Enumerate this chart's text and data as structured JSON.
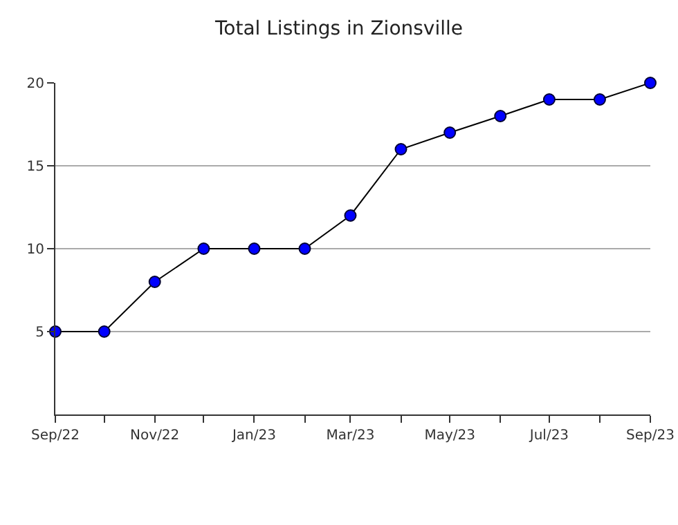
{
  "chart_data": {
    "type": "line",
    "title": "Total Listings in Zionsville",
    "x": [
      "2022-09",
      "2022-10",
      "2022-11",
      "2022-12",
      "2023-01",
      "2023-02",
      "2023-03",
      "2023-04",
      "2023-05",
      "2023-06",
      "2023-07",
      "2023-08",
      "2023-09"
    ],
    "series": [
      {
        "color": "#0000ff",
        "values": [
          5,
          5,
          8,
          10,
          10,
          10,
          12,
          16,
          17,
          18,
          19,
          19,
          20
        ]
      }
    ],
    "xlim": [
      "2022-09",
      "2023-09"
    ],
    "xticks": [
      {
        "value": "2022-09",
        "label": "Sep/22"
      },
      {
        "value": "2022-10",
        "label": null
      },
      {
        "value": "2022-11",
        "label": "Nov/22"
      },
      {
        "value": "2022-12",
        "label": null
      },
      {
        "value": "2023-01",
        "label": "Jan/23"
      },
      {
        "value": "2023-02",
        "label": null
      },
      {
        "value": "2023-03",
        "label": "Mar/23"
      },
      {
        "value": "2023-04",
        "label": null
      },
      {
        "value": "2023-05",
        "label": "May/23"
      },
      {
        "value": "2023-06",
        "label": null
      },
      {
        "value": "2023-07",
        "label": "Jul/23"
      },
      {
        "value": "2023-08",
        "label": null
      },
      {
        "value": "2023-09",
        "label": "Sep/23"
      }
    ],
    "ylim": [
      0,
      20
    ],
    "yticks": [
      5,
      10,
      15,
      20
    ],
    "grid": "y",
    "marker": "circle",
    "line_style": "solid"
  }
}
